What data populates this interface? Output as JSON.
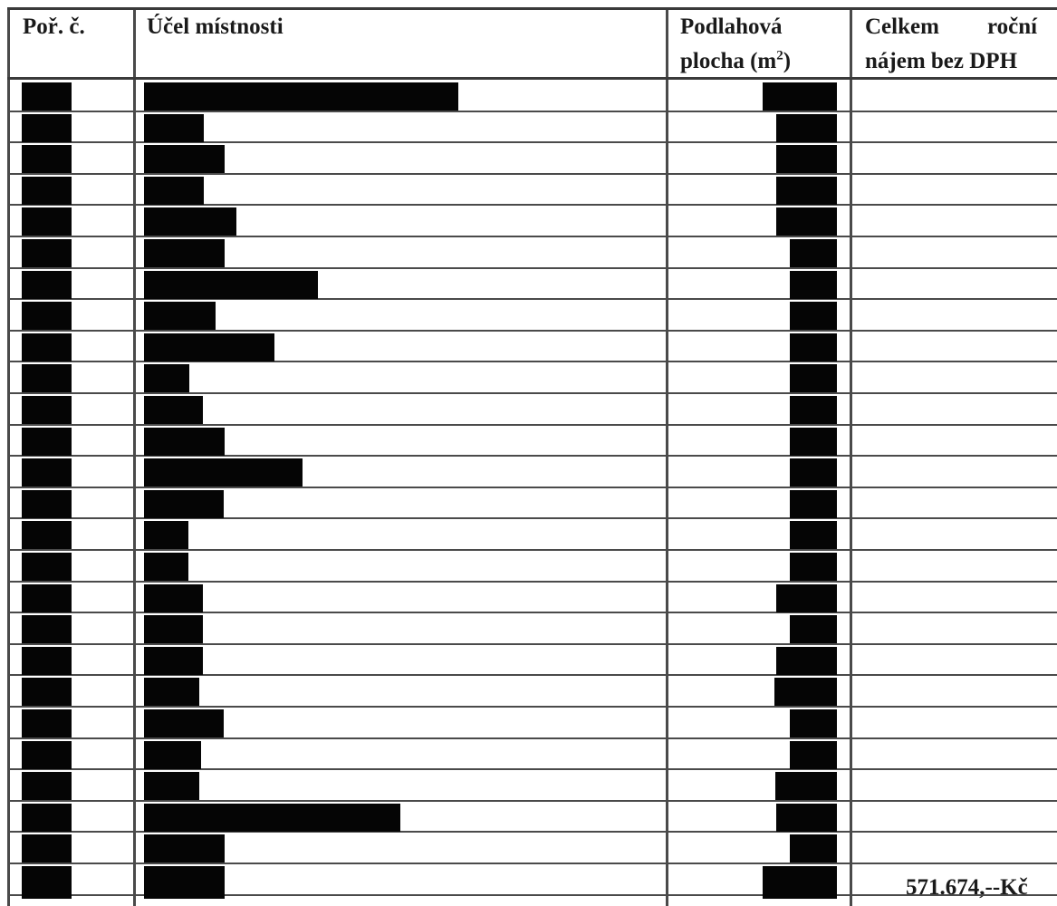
{
  "table": {
    "headers": {
      "col1": "Poř. č.",
      "col2": "Účel místnosti",
      "col3_line1": "Podlahová",
      "col3_line2_base": "plocha (m",
      "col3_line2_sup": "2",
      "col3_line2_end": ")",
      "col4_line1_a": "Celkem",
      "col4_line1_b": "roční",
      "col4_line2": "nájem bez DPH"
    },
    "redacted_rows": 25,
    "total_value": "571.674,--Kč"
  }
}
